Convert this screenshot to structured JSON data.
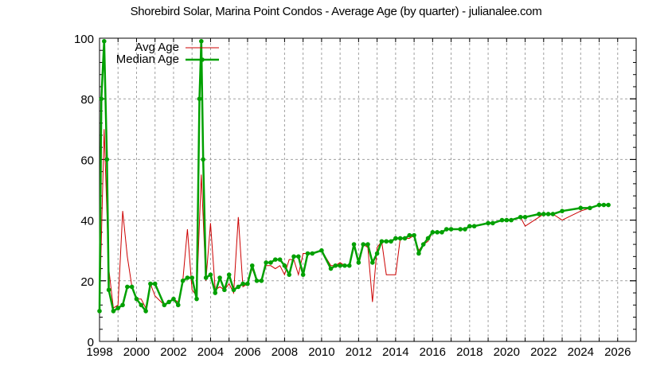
{
  "title": "Shorebird Solar, Marina Point Condos - Average Age (by quarter) - julianalee.com",
  "colors": {
    "avg": "#cc0000",
    "median": "#00a000",
    "grid": "#a0a0a0",
    "axis": "#000000"
  },
  "legend": {
    "avg_label": "Avg Age",
    "median_label": "Median Age"
  },
  "chart_data": {
    "type": "line",
    "title": "Shorebird Solar, Marina Point Condos - Average Age (by quarter) - julianalee.com",
    "xlabel": "",
    "ylabel": "",
    "xlim": [
      1998,
      2027
    ],
    "ylim": [
      0,
      100
    ],
    "xticks": [
      1998,
      2000,
      2002,
      2004,
      2006,
      2008,
      2010,
      2012,
      2014,
      2016,
      2018,
      2020,
      2022,
      2024,
      2026
    ],
    "yticks": [
      0,
      20,
      40,
      60,
      80,
      100
    ],
    "grid": true,
    "legend_position": "top-left inside",
    "series": [
      {
        "name": "Avg Age",
        "style": "line",
        "color": "#cc0000",
        "x": [
          1998.0,
          1998.25,
          1998.5,
          1998.75,
          1999.0,
          1999.25,
          1999.5,
          1999.75,
          2000.0,
          2000.25,
          2000.5,
          2000.75,
          2001.0,
          2001.5,
          2001.75,
          2002.0,
          2002.25,
          2002.5,
          2002.75,
          2003.0,
          2003.25,
          2003.5,
          2003.75,
          2004.0,
          2004.25,
          2004.5,
          2004.75,
          2005.0,
          2005.25,
          2005.5,
          2005.75,
          2006.0,
          2006.25,
          2006.5,
          2006.75,
          2007.0,
          2007.25,
          2007.5,
          2007.75,
          2008.0,
          2008.25,
          2008.5,
          2008.75,
          2009.0,
          2009.25,
          2009.5,
          2010.0,
          2010.5,
          2010.75,
          2011.0,
          2011.25,
          2011.5,
          2011.75,
          2012.0,
          2012.25,
          2012.5,
          2012.75,
          2013.0,
          2013.25,
          2013.5,
          2013.75,
          2014.0,
          2014.25,
          2014.5,
          2014.75,
          2015.0,
          2015.25,
          2015.5,
          2015.75,
          2016.0,
          2016.25,
          2016.5,
          2016.75,
          2017.0,
          2017.5,
          2017.75,
          2018.0,
          2018.25,
          2019.0,
          2019.25,
          2019.75,
          2020.0,
          2020.25,
          2020.75,
          2021.0,
          2021.75,
          2022.0,
          2022.25,
          2022.5,
          2023.0,
          2024.0,
          2024.5,
          2025.0,
          2025.25,
          2025.5
        ],
        "values": [
          10,
          70,
          24,
          11,
          12,
          43,
          28,
          18,
          14,
          14,
          11,
          19,
          15,
          12,
          13,
          14,
          13,
          20,
          37,
          17,
          15,
          55,
          20,
          39,
          17,
          18,
          17,
          19,
          16,
          41,
          18,
          19,
          24,
          20,
          20,
          25,
          25,
          24,
          25,
          22,
          27,
          27,
          22,
          29,
          29,
          29,
          30,
          25,
          25,
          26,
          25,
          25,
          31,
          27,
          32,
          31,
          13,
          31,
          33,
          22,
          22,
          22,
          34,
          34,
          34,
          35,
          30,
          32,
          33,
          36,
          36,
          36,
          37,
          37,
          37,
          37,
          38,
          38,
          39,
          39,
          40,
          40,
          40,
          41,
          38,
          41,
          42,
          42,
          42,
          40,
          43,
          44,
          45,
          45,
          45
        ]
      },
      {
        "name": "Median Age",
        "style": "linespoints",
        "color": "#00a000",
        "x": [
          1998.0,
          1998.1,
          1998.25,
          1998.4,
          1998.5,
          1998.75,
          1999.0,
          1999.25,
          1999.5,
          1999.75,
          2000.0,
          2000.25,
          2000.5,
          2000.75,
          2001.0,
          2001.5,
          2001.75,
          2002.0,
          2002.25,
          2002.5,
          2002.75,
          2003.0,
          2003.25,
          2003.4,
          2003.5,
          2003.6,
          2003.75,
          2004.0,
          2004.25,
          2004.5,
          2004.75,
          2005.0,
          2005.25,
          2005.5,
          2005.75,
          2006.0,
          2006.25,
          2006.5,
          2006.75,
          2007.0,
          2007.25,
          2007.5,
          2007.75,
          2008.0,
          2008.25,
          2008.5,
          2008.75,
          2009.0,
          2009.25,
          2009.5,
          2010.0,
          2010.5,
          2010.75,
          2011.0,
          2011.25,
          2011.5,
          2011.75,
          2012.0,
          2012.25,
          2012.5,
          2012.75,
          2013.0,
          2013.25,
          2013.5,
          2013.75,
          2014.0,
          2014.25,
          2014.5,
          2014.75,
          2015.0,
          2015.25,
          2015.5,
          2015.75,
          2016.0,
          2016.25,
          2016.5,
          2016.75,
          2017.0,
          2017.5,
          2017.75,
          2018.0,
          2018.25,
          2019.0,
          2019.25,
          2019.75,
          2020.0,
          2020.25,
          2020.75,
          2021.0,
          2021.75,
          2022.0,
          2022.25,
          2022.5,
          2023.0,
          2024.0,
          2024.5,
          2025.0,
          2025.25,
          2025.5
        ],
        "values": [
          10,
          80,
          99,
          60,
          17,
          10,
          11,
          12,
          18,
          18,
          14,
          12,
          10,
          19,
          19,
          12,
          13,
          14,
          12,
          20,
          21,
          21,
          14,
          80,
          99,
          60,
          21,
          22,
          16,
          21,
          17,
          22,
          17,
          18,
          19,
          19,
          25,
          20,
          20,
          26,
          26,
          27,
          27,
          25,
          22,
          28,
          28,
          22,
          29,
          29,
          30,
          24,
          25,
          25,
          25,
          25,
          32,
          26,
          32,
          32,
          26,
          29,
          33,
          33,
          33,
          34,
          34,
          34,
          35,
          35,
          29,
          32,
          34,
          36,
          36,
          36,
          37,
          37,
          37,
          37,
          38,
          38,
          39,
          39,
          40,
          40,
          40,
          41,
          41,
          42,
          42,
          42,
          42,
          43,
          44,
          44,
          45,
          45,
          45
        ]
      }
    ]
  }
}
